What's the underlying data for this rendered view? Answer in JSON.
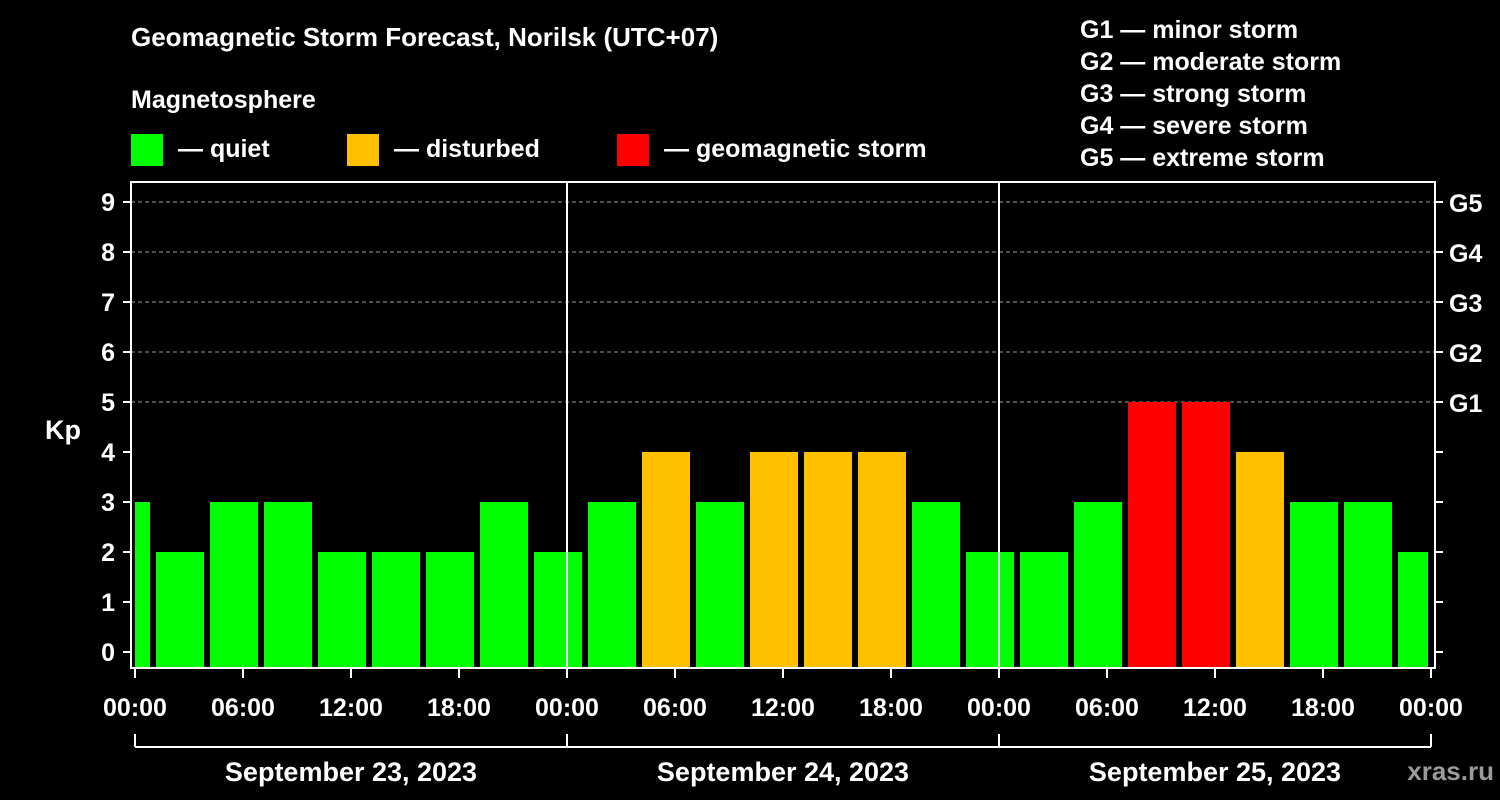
{
  "title": "Geomagnetic Storm Forecast, Norilsk (UTC+07)",
  "subtitle": "Magnetosphere",
  "legend": [
    {
      "label": "— quiet",
      "color": "#00ff00"
    },
    {
      "label": "— disturbed",
      "color": "#ffc000"
    },
    {
      "label": "— geomagnetic storm",
      "color": "#ff0000"
    }
  ],
  "storm_levels": [
    "G1 — minor storm",
    "G2 — moderate storm",
    "G3 — strong storm",
    "G4 — severe storm",
    "G5 — extreme storm"
  ],
  "watermark": "xras.ru",
  "chart_data": {
    "type": "bar",
    "ylabel": "Kp",
    "ylim": [
      0,
      9
    ],
    "y_ticks": [
      "0",
      "1",
      "2",
      "3",
      "4",
      "5",
      "6",
      "7",
      "8",
      "9"
    ],
    "right_ticks": [
      {
        "kp": 5,
        "label": "G1"
      },
      {
        "kp": 6,
        "label": "G2"
      },
      {
        "kp": 7,
        "label": "G3"
      },
      {
        "kp": 8,
        "label": "G4"
      },
      {
        "kp": 9,
        "label": "G5"
      }
    ],
    "x_tick_labels": [
      "00:00",
      "06:00",
      "12:00",
      "18:00",
      "00:00",
      "06:00",
      "12:00",
      "18:00",
      "00:00",
      "06:00",
      "12:00",
      "18:00",
      "00:00"
    ],
    "days": [
      "September 23, 2023",
      "September 24, 2023",
      "September 25, 2023"
    ],
    "grid": "dashed at 5–9",
    "colors": {
      "quiet": "#00ff00",
      "disturbed": "#ffc000",
      "storm": "#ff0000"
    },
    "bars": [
      {
        "start_hour": 0,
        "end_hour": 1,
        "kp": 3,
        "status": "quiet"
      },
      {
        "start_hour": 1,
        "end_hour": 4,
        "kp": 2,
        "status": "quiet"
      },
      {
        "start_hour": 4,
        "end_hour": 7,
        "kp": 3,
        "status": "quiet"
      },
      {
        "start_hour": 7,
        "end_hour": 10,
        "kp": 3,
        "status": "quiet"
      },
      {
        "start_hour": 10,
        "end_hour": 13,
        "kp": 2,
        "status": "quiet"
      },
      {
        "start_hour": 13,
        "end_hour": 16,
        "kp": 2,
        "status": "quiet"
      },
      {
        "start_hour": 16,
        "end_hour": 19,
        "kp": 2,
        "status": "quiet"
      },
      {
        "start_hour": 19,
        "end_hour": 22,
        "kp": 3,
        "status": "quiet"
      },
      {
        "start_hour": 22,
        "end_hour": 25,
        "kp": 2,
        "status": "quiet"
      },
      {
        "start_hour": 25,
        "end_hour": 28,
        "kp": 3,
        "status": "quiet"
      },
      {
        "start_hour": 28,
        "end_hour": 31,
        "kp": 4,
        "status": "disturbed"
      },
      {
        "start_hour": 31,
        "end_hour": 34,
        "kp": 3,
        "status": "quiet"
      },
      {
        "start_hour": 34,
        "end_hour": 37,
        "kp": 4,
        "status": "disturbed"
      },
      {
        "start_hour": 37,
        "end_hour": 40,
        "kp": 4,
        "status": "disturbed"
      },
      {
        "start_hour": 40,
        "end_hour": 43,
        "kp": 4,
        "status": "disturbed"
      },
      {
        "start_hour": 43,
        "end_hour": 46,
        "kp": 3,
        "status": "quiet"
      },
      {
        "start_hour": 46,
        "end_hour": 49,
        "kp": 2,
        "status": "quiet"
      },
      {
        "start_hour": 49,
        "end_hour": 52,
        "kp": 2,
        "status": "quiet"
      },
      {
        "start_hour": 52,
        "end_hour": 55,
        "kp": 3,
        "status": "quiet"
      },
      {
        "start_hour": 55,
        "end_hour": 58,
        "kp": 5,
        "status": "storm"
      },
      {
        "start_hour": 58,
        "end_hour": 61,
        "kp": 5,
        "status": "storm"
      },
      {
        "start_hour": 61,
        "end_hour": 64,
        "kp": 4,
        "status": "disturbed"
      },
      {
        "start_hour": 64,
        "end_hour": 67,
        "kp": 3,
        "status": "quiet"
      },
      {
        "start_hour": 67,
        "end_hour": 70,
        "kp": 3,
        "status": "quiet"
      },
      {
        "start_hour": 70,
        "end_hour": 72,
        "kp": 2,
        "status": "quiet"
      }
    ]
  }
}
